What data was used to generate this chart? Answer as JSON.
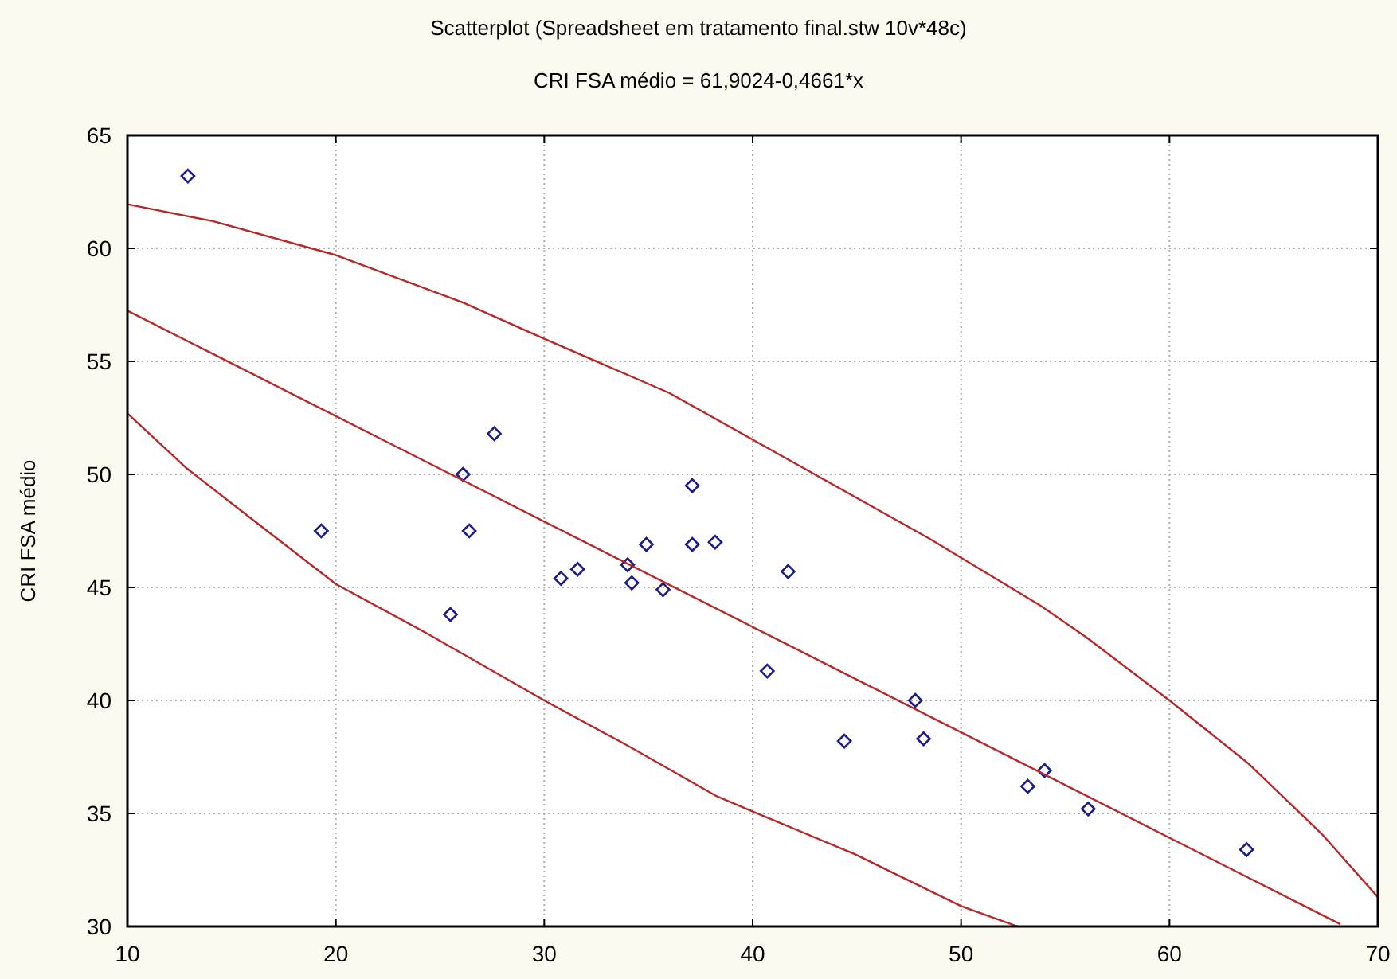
{
  "chart_data": {
    "type": "scatter",
    "title": "Scatterplot (Spreadsheet em tratamento final.stw 10v*48c)",
    "subtitle": "CRI FSA médio = 61,9024-0,4661*x",
    "ylabel": "CRI FSA médio",
    "xlim": [
      10,
      70
    ],
    "ylim": [
      30,
      65
    ],
    "xticks": [
      10,
      20,
      30,
      40,
      50,
      60,
      70
    ],
    "yticks": [
      30,
      35,
      40,
      45,
      50,
      55,
      60,
      65
    ],
    "grid": true,
    "series": [
      {
        "marker": "diamond",
        "color": "#1c1c8c",
        "x": [
          12.9,
          19.3,
          26.1,
          27.6,
          26.4,
          37.1,
          25.5,
          30.8,
          31.6,
          34.0,
          34.2,
          35.7,
          34.9,
          37.1,
          38.2,
          41.7,
          40.7,
          44.4,
          47.8,
          48.2,
          53.2,
          54.0,
          56.1,
          63.7
        ],
        "values": [
          63.2,
          47.5,
          50.0,
          51.8,
          47.5,
          49.5,
          43.8,
          45.4,
          45.8,
          46.0,
          45.2,
          44.9,
          46.9,
          46.9,
          47.0,
          45.7,
          41.3,
          38.2,
          40.0,
          38.3,
          36.2,
          36.9,
          35.2,
          33.4
        ]
      },
      {
        "type": "line",
        "marker": "none",
        "line_style": "solid",
        "color": "#b82828",
        "x": [
          10,
          68.2
        ],
        "values": [
          57.24,
          30.1
        ]
      },
      {
        "type": "line",
        "marker": "none",
        "line_style": "solid",
        "color": "#b82828",
        "x": [
          10,
          14.1,
          20,
          26.1,
          30,
          36,
          42.4,
          48.5,
          53.8,
          56,
          60,
          63.8,
          67.3,
          70
        ],
        "values": [
          61.95,
          61.2,
          59.7,
          57.6,
          56.0,
          53.6,
          50.3,
          47.15,
          44.2,
          42.8,
          40.0,
          37.2,
          34.1,
          31.3
        ]
      },
      {
        "type": "line",
        "marker": "none",
        "line_style": "solid",
        "color": "#b82828",
        "x": [
          10,
          12.8,
          16,
          20,
          24.3,
          30,
          34,
          38.3,
          40.1,
          44.9,
          50,
          52.7
        ],
        "values": [
          52.7,
          50.3,
          48.0,
          45.15,
          43.0,
          40.0,
          38.0,
          35.75,
          35.05,
          33.2,
          30.9,
          30.0
        ]
      }
    ]
  }
}
